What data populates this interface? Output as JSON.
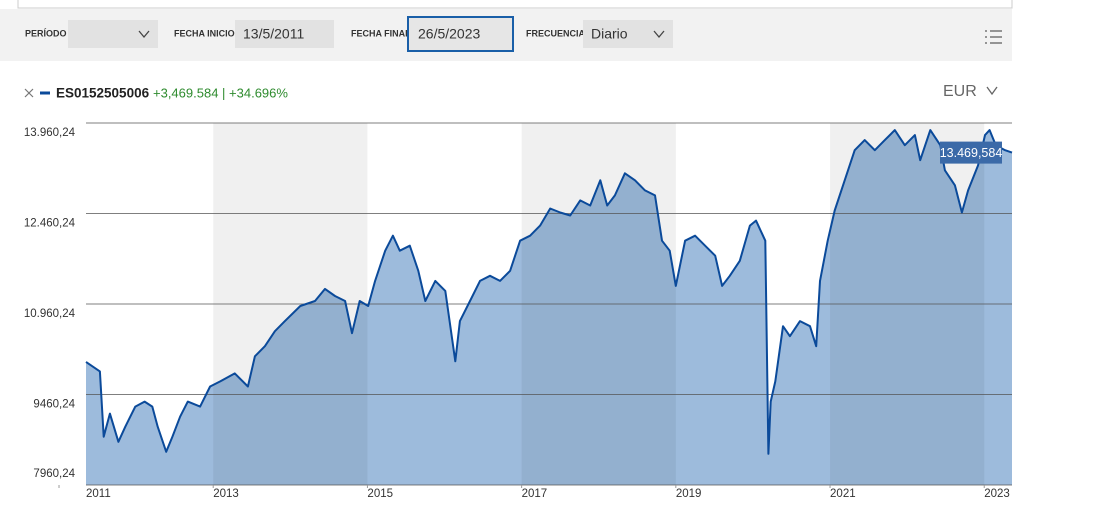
{
  "toolbar": {
    "fields": [
      {
        "label": "PERÍODO",
        "value": ""
      },
      {
        "label": "FECHA INICIO",
        "value": "13/5/2011"
      },
      {
        "label": "FECHA FINAL",
        "value": "26/5/2023"
      },
      {
        "label": "FRECUENCIA",
        "value": "Diario"
      }
    ]
  },
  "chart_data": {
    "type": "line",
    "currency": "EUR",
    "change": "+3,469.584 | +34.696%",
    "end_label": "13.469,584",
    "x": [
      2011.35,
      2011.53,
      2011.58,
      2011.66,
      2011.77,
      2011.86,
      2011.99,
      2012.11,
      2012.21,
      2012.28,
      2012.39,
      2012.47,
      2012.57,
      2012.67,
      2012.83,
      2012.96,
      2013.09,
      2013.28,
      2013.45,
      2013.54,
      2013.67,
      2013.8,
      2013.93,
      2014.13,
      2014.32,
      2014.45,
      2014.58,
      2014.71,
      2014.8,
      2014.9,
      2015.01,
      2015.1,
      2015.23,
      2015.33,
      2015.42,
      2015.55,
      2015.66,
      2015.75,
      2015.88,
      2016.01,
      2016.14,
      2016.2,
      2016.33,
      2016.46,
      2016.59,
      2016.72,
      2016.85,
      2016.98,
      2017.11,
      2017.24,
      2017.37,
      2017.5,
      2017.63,
      2017.76,
      2017.89,
      2018.02,
      2018.11,
      2018.21,
      2018.34,
      2018.47,
      2018.6,
      2018.73,
      2018.82,
      2018.92,
      2019.0,
      2019.12,
      2019.25,
      2019.38,
      2019.51,
      2019.6,
      2019.7,
      2019.83,
      2019.96,
      2020.04,
      2020.16,
      2020.2,
      2020.23,
      2020.29,
      2020.39,
      2020.48,
      2020.61,
      2020.74,
      2020.82,
      2020.87,
      2020.97,
      2021.06,
      2021.19,
      2021.32,
      2021.45,
      2021.58,
      2021.71,
      2021.84,
      2021.97,
      2022.1,
      2022.17,
      2022.3,
      2022.43,
      2022.49,
      2022.62,
      2022.71,
      2022.79,
      2022.92,
      2023.01,
      2023.07,
      2023.15,
      2023.27,
      2023.36
    ],
    "series": [
      {
        "name": "ES0152505006",
        "color": "#0b4a9a",
        "fill": "#9dbbdc",
        "values": [
          10000,
          9843,
          8760,
          9143,
          8677,
          8927,
          9260,
          9343,
          9260,
          8927,
          8510,
          8760,
          9093,
          9343,
          9260,
          9593,
          9677,
          9810,
          9593,
          10093,
          10260,
          10510,
          10677,
          10927,
          11010,
          11210,
          11093,
          11010,
          10477,
          11010,
          10927,
          11343,
          11843,
          12093,
          11843,
          11927,
          11510,
          11010,
          11343,
          11177,
          10010,
          10677,
          11010,
          11343,
          11427,
          11343,
          11510,
          12010,
          12093,
          12260,
          12543,
          12477,
          12427,
          12677,
          12593,
          13010,
          12593,
          12760,
          13127,
          13010,
          12843,
          12760,
          12010,
          11843,
          11260,
          12010,
          12093,
          11927,
          11760,
          11260,
          11427,
          11677,
          12260,
          12343,
          12010,
          8477,
          9343,
          9677,
          10593,
          10427,
          10677,
          10593,
          10260,
          11343,
          12010,
          12510,
          13010,
          13510,
          13677,
          13510,
          13677,
          13843,
          13593,
          13760,
          13343,
          13843,
          13593,
          13177,
          12927,
          12477,
          12843,
          13260,
          13760,
          13843,
          13593,
          13510,
          13469.584
        ]
      }
    ],
    "xlim": [
      2011.35,
      2023.36
    ],
    "xticks": [
      2011,
      2013,
      2015,
      2017,
      2019,
      2021,
      2023
    ],
    "ylim": [
      7960.24,
      13960.24
    ],
    "yticks": [
      {
        "value": 7960.24,
        "label": "7960,24"
      },
      {
        "value": 9460.24,
        "label": "9460,24"
      },
      {
        "value": 10960.24,
        "label": "10.960,24"
      },
      {
        "value": 12460.24,
        "label": "12.460,24"
      },
      {
        "value": 13960.24,
        "label": "13.960,24"
      }
    ],
    "grid": true
  }
}
